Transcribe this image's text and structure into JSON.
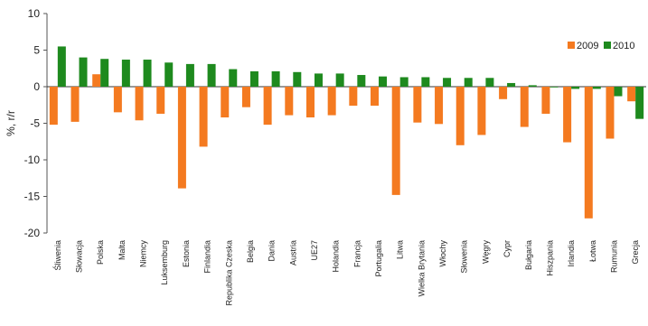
{
  "chart_data": {
    "type": "bar",
    "ylabel": "%, r/r",
    "ylim": [
      -20,
      10
    ],
    "yticks": [
      10,
      5,
      0,
      -5,
      -10,
      -15,
      -20
    ],
    "grid": false,
    "legend_position": "top-right",
    "categories": [
      "Śliwenia",
      "Słowacja",
      "Polska",
      "Malta",
      "Niemcy",
      "Luksemburg",
      "Estonia",
      "Finlandia",
      "Republika Czeska",
      "Belgia",
      "Dania",
      "Austria",
      "UE27",
      "Holandia",
      "Francja",
      "Portugalia",
      "Litwa",
      "Wielka Brytania",
      "Włochy",
      "Słowenia",
      "Węgry",
      "Cypr",
      "Bułgaria",
      "Hiszpania",
      "Irlandia",
      "Łotwa",
      "Rumunia",
      "Grecja"
    ],
    "series": [
      {
        "name": "2009",
        "color": "#f47a20",
        "values": [
          -5.2,
          -4.8,
          1.7,
          -3.5,
          -4.6,
          -3.7,
          -13.9,
          -8.2,
          -4.2,
          -2.8,
          -5.2,
          -3.9,
          -4.2,
          -3.9,
          -2.6,
          -2.6,
          -14.8,
          -4.9,
          -5.1,
          -8.0,
          -6.6,
          -1.7,
          -5.5,
          -3.7,
          -7.6,
          -18.0,
          -7.1,
          -2.0
        ]
      },
      {
        "name": "2010",
        "color": "#1e8a1e",
        "values": [
          5.5,
          4.0,
          3.8,
          3.7,
          3.7,
          3.3,
          3.1,
          3.1,
          2.4,
          2.1,
          2.1,
          2.0,
          1.8,
          1.8,
          1.6,
          1.4,
          1.3,
          1.3,
          1.2,
          1.2,
          1.2,
          0.5,
          0.2,
          -0.1,
          -0.3,
          -0.3,
          -1.3,
          -4.4
        ]
      }
    ]
  }
}
